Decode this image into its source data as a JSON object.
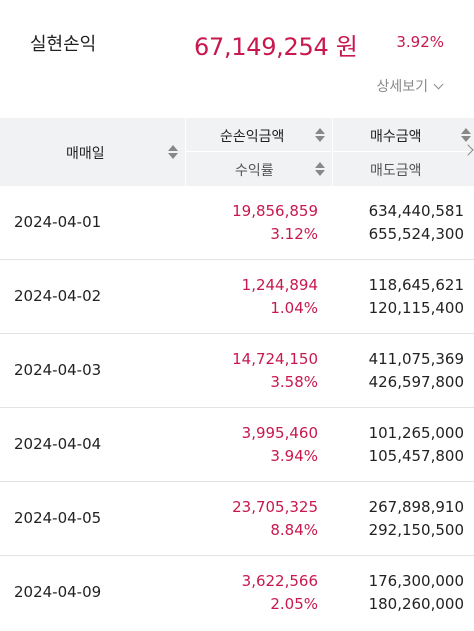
{
  "summary": {
    "label": "실현손익",
    "amount": "67,149,254 원",
    "rate": "3.92%",
    "detail_label": "상세보기"
  },
  "table": {
    "headers": {
      "date": "매매일",
      "net_profit": "순손익금액",
      "return_rate": "수익률",
      "buy_amount": "매수금액",
      "sell_amount": "매도금액"
    },
    "rows": [
      {
        "date": "2024-04-01",
        "profit": "19,856,859",
        "rate": "3.12%",
        "buy": "634,440,581",
        "sell": "655,524,300"
      },
      {
        "date": "2024-04-02",
        "profit": "1,244,894",
        "rate": "1.04%",
        "buy": "118,645,621",
        "sell": "120,115,400"
      },
      {
        "date": "2024-04-03",
        "profit": "14,724,150",
        "rate": "3.58%",
        "buy": "411,075,369",
        "sell": "426,597,800"
      },
      {
        "date": "2024-04-04",
        "profit": "3,995,460",
        "rate": "3.94%",
        "buy": "101,265,000",
        "sell": "105,457,800"
      },
      {
        "date": "2024-04-05",
        "profit": "23,705,325",
        "rate": "8.84%",
        "buy": "267,898,910",
        "sell": "292,150,500"
      },
      {
        "date": "2024-04-09",
        "profit": "3,622,566",
        "rate": "2.05%",
        "buy": "176,300,000",
        "sell": "180,260,000"
      }
    ]
  },
  "colors": {
    "accent": "#c8184e",
    "header_bg": "#f1f2f4"
  }
}
